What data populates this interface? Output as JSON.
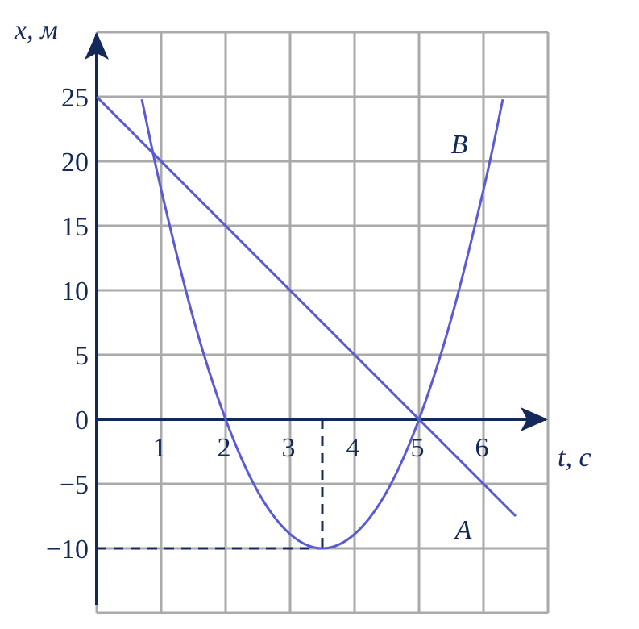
{
  "chart_data": {
    "type": "line",
    "xlabel": "t, с",
    "ylabel": "x, м",
    "xlim": [
      0,
      7
    ],
    "ylim": [
      -15,
      30
    ],
    "xticks": [
      1,
      2,
      3,
      4,
      5,
      6
    ],
    "yticks": [
      {
        "value": -10,
        "label": "−10"
      },
      {
        "value": -5,
        "label": "−5"
      },
      0,
      5,
      10,
      15,
      20,
      25
    ],
    "grid": true,
    "grid_color": "#aaaaaa",
    "axis_color": "#14285a",
    "series": [
      {
        "name": "A",
        "color": "#5a5ad2",
        "x": [
          0,
          6.5
        ],
        "values": [
          25,
          -7.5
        ]
      },
      {
        "name": "B",
        "color": "#5a5ad2",
        "x": [
          0.7,
          1,
          1.5,
          2,
          2.5,
          3,
          3.5,
          4,
          4.5,
          5,
          5.5,
          6,
          6.3
        ],
        "values": [
          24.8,
          17.8,
          7.8,
          0,
          -5.6,
          -8.9,
          -10,
          -8.9,
          -5.6,
          0,
          7.8,
          17.8,
          24.8
        ]
      }
    ],
    "guide": {
      "x": 3.5,
      "y": -10
    }
  }
}
